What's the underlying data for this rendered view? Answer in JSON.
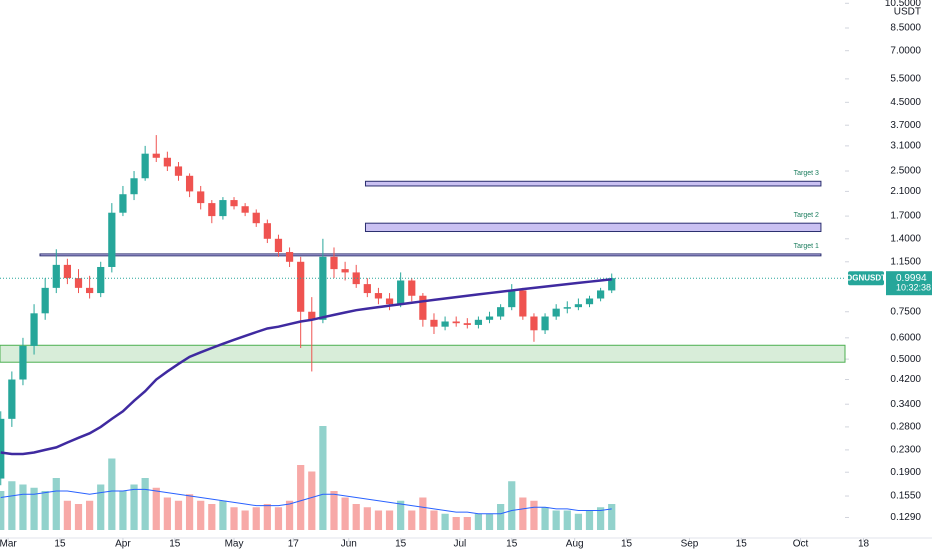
{
  "chart_data": {
    "type": "candlestick",
    "symbol": "OGNUSDT",
    "currency": "USDT",
    "countdown": "10:32:38",
    "log_scale": true,
    "up_color": "#26a69a",
    "down_color": "#ef5350",
    "ma_color": "#3f2aa0",
    "volume_ma_color": "#2962ff",
    "xlim": [
      -2.2,
      226
    ],
    "ylim": [
      0.112,
      10.8
    ],
    "volume_ylim": [
      0,
      40
    ],
    "xticks": [
      {
        "value": 0,
        "label": "Mar"
      },
      {
        "value": 14,
        "label": "15"
      },
      {
        "value": 31,
        "label": "Apr"
      },
      {
        "value": 45,
        "label": "15"
      },
      {
        "value": 61,
        "label": "May"
      },
      {
        "value": 77,
        "label": "17"
      },
      {
        "value": 92,
        "label": "Jun"
      },
      {
        "value": 106,
        "label": "15"
      },
      {
        "value": 122,
        "label": "Jul"
      },
      {
        "value": 136,
        "label": "15"
      },
      {
        "value": 153,
        "label": "Aug"
      },
      {
        "value": 167,
        "label": "15"
      },
      {
        "value": 184,
        "label": "Sep"
      },
      {
        "value": 198,
        "label": "15"
      },
      {
        "value": 214,
        "label": "Oct"
      },
      {
        "value": 231,
        "label": "18"
      }
    ],
    "yticks": [
      {
        "value": 10.5,
        "label": "10.5000"
      },
      {
        "value": 8.5,
        "label": "8.5000"
      },
      {
        "value": 7,
        "label": "7.0000"
      },
      {
        "value": 5.5,
        "label": "5.5000"
      },
      {
        "value": 4.5,
        "label": "4.5000"
      },
      {
        "value": 3.7,
        "label": "3.7000"
      },
      {
        "value": 3.1,
        "label": "3.1000"
      },
      {
        "value": 2.5,
        "label": "2.5000"
      },
      {
        "value": 2.1,
        "label": "2.1000"
      },
      {
        "value": 1.7,
        "label": "1.7000"
      },
      {
        "value": 1.4,
        "label": "1.4000"
      },
      {
        "value": 1.15,
        "label": "1.1500"
      },
      {
        "value": 0.75,
        "label": "0.7500"
      },
      {
        "value": 0.6,
        "label": "0.6000"
      },
      {
        "value": 0.5,
        "label": "0.5000"
      },
      {
        "value": 0.42,
        "label": "0.4200"
      },
      {
        "value": 0.34,
        "label": "0.3400"
      },
      {
        "value": 0.28,
        "label": "0.2800"
      },
      {
        "value": 0.23,
        "label": "0.2300"
      },
      {
        "value": 0.19,
        "label": "0.1900"
      },
      {
        "value": 0.155,
        "label": "0.1550"
      },
      {
        "value": 0.129,
        "label": "0.1290"
      }
    ],
    "last_price": 0.9994,
    "zones": [
      {
        "label": "Target 3",
        "low": 2.2,
        "high": 2.29,
        "start": 96.5,
        "end": 219.5,
        "color": "#b3a6ec"
      },
      {
        "label": "Target 2",
        "low": 1.49,
        "high": 1.6,
        "start": 96.5,
        "end": 219.5,
        "color": "#b3a6ec"
      },
      {
        "label": "Target 1",
        "low": 1.21,
        "high": 1.23,
        "start": 8.6,
        "end": 219.5,
        "color": "#b3a6ec"
      },
      {
        "low": 0.487,
        "high": 0.563,
        "start": -2.2,
        "end": 226,
        "color": "#c8e6c9"
      }
    ],
    "candles": {
      "x": [
        -2,
        1,
        4,
        7,
        10,
        13,
        16,
        19,
        22,
        25,
        28,
        31,
        34,
        37,
        40,
        43,
        46,
        49,
        52,
        55,
        58,
        61,
        64,
        67,
        70,
        73,
        76,
        79,
        82,
        85,
        88,
        91,
        94,
        97,
        100,
        103,
        106,
        109,
        112,
        115,
        118,
        121,
        124,
        127,
        130,
        133,
        136,
        139,
        142,
        145,
        148,
        151,
        154,
        157,
        160,
        163
      ],
      "open": [
        0.18,
        0.3,
        0.42,
        0.56,
        0.74,
        0.92,
        1.12,
        1.0,
        0.92,
        0.88,
        1.1,
        1.75,
        2.05,
        2.35,
        2.9,
        2.8,
        2.6,
        2.4,
        2.1,
        1.9,
        1.7,
        1.95,
        1.85,
        1.75,
        1.6,
        1.4,
        1.25,
        1.15,
        0.75,
        0.7,
        1.2,
        1.08,
        1.05,
        0.95,
        0.88,
        0.84,
        0.8,
        0.98,
        0.86,
        0.7,
        0.66,
        0.69,
        0.68,
        0.67,
        0.7,
        0.72,
        0.78,
        0.9,
        0.72,
        0.64,
        0.72,
        0.77,
        0.78,
        0.8,
        0.84,
        0.9
      ],
      "high": [
        0.32,
        0.45,
        0.6,
        0.8,
        1.0,
        1.28,
        1.18,
        1.08,
        1.02,
        1.15,
        1.9,
        2.2,
        2.5,
        3.1,
        3.4,
        2.95,
        2.7,
        2.45,
        2.2,
        1.95,
        2.0,
        2.0,
        1.9,
        1.8,
        1.65,
        1.45,
        1.3,
        1.2,
        0.85,
        1.4,
        1.3,
        1.15,
        1.12,
        1.0,
        0.92,
        0.88,
        1.05,
        1.0,
        0.88,
        0.74,
        0.72,
        0.72,
        0.71,
        0.72,
        0.75,
        0.8,
        0.95,
        0.92,
        0.74,
        0.74,
        0.8,
        0.82,
        0.84,
        0.86,
        0.92,
        1.04
      ],
      "low": [
        0.17,
        0.28,
        0.4,
        0.52,
        0.7,
        0.88,
        0.95,
        0.88,
        0.84,
        0.85,
        1.05,
        1.7,
        1.95,
        2.3,
        2.7,
        2.5,
        2.3,
        2.0,
        1.8,
        1.6,
        1.65,
        1.8,
        1.7,
        1.55,
        1.35,
        1.2,
        1.1,
        0.55,
        0.45,
        0.68,
        1.0,
        0.98,
        0.92,
        0.85,
        0.8,
        0.76,
        0.78,
        0.82,
        0.66,
        0.62,
        0.64,
        0.66,
        0.65,
        0.65,
        0.68,
        0.7,
        0.76,
        0.7,
        0.58,
        0.62,
        0.7,
        0.74,
        0.76,
        0.78,
        0.82,
        0.88
      ],
      "close": [
        0.3,
        0.42,
        0.56,
        0.74,
        0.92,
        1.12,
        1.0,
        0.92,
        0.88,
        1.1,
        1.75,
        2.05,
        2.35,
        2.9,
        2.8,
        2.6,
        2.4,
        2.1,
        1.9,
        1.7,
        1.95,
        1.85,
        1.75,
        1.6,
        1.4,
        1.25,
        1.15,
        0.75,
        0.7,
        1.2,
        1.08,
        1.05,
        0.95,
        0.88,
        0.84,
        0.8,
        0.98,
        0.86,
        0.7,
        0.66,
        0.69,
        0.68,
        0.67,
        0.7,
        0.72,
        0.78,
        0.9,
        0.72,
        0.64,
        0.72,
        0.77,
        0.78,
        0.8,
        0.84,
        0.9,
        0.9994
      ],
      "volume": [
        12,
        15,
        14,
        13,
        12,
        16,
        9,
        8,
        9,
        14,
        22,
        12,
        14,
        16,
        13,
        10,
        9,
        11,
        9,
        8,
        9,
        7,
        6,
        7,
        8,
        7,
        9,
        20,
        18,
        32,
        12,
        10,
        8,
        7,
        6,
        6,
        9,
        6,
        10,
        6,
        5,
        4,
        4,
        5,
        5,
        8,
        15,
        10,
        9,
        7,
        6,
        6,
        5,
        6,
        7,
        8
      ],
      "ma": [
        0.225,
        0.222,
        0.222,
        0.225,
        0.23,
        0.235,
        0.245,
        0.255,
        0.265,
        0.28,
        0.3,
        0.32,
        0.35,
        0.38,
        0.42,
        0.45,
        0.48,
        0.51,
        0.53,
        0.55,
        0.57,
        0.59,
        0.61,
        0.63,
        0.65,
        0.66,
        0.675,
        0.69,
        0.7,
        0.715,
        0.73,
        0.745,
        0.76,
        0.77,
        0.78,
        0.79,
        0.8,
        0.81,
        0.82,
        0.83,
        0.84,
        0.85,
        0.86,
        0.87,
        0.88,
        0.89,
        0.9,
        0.91,
        0.92,
        0.93,
        0.94,
        0.95,
        0.96,
        0.97,
        0.98,
        0.99
      ],
      "volume_ma": [
        10,
        10.5,
        11,
        11,
        11.5,
        12,
        12,
        11.5,
        11,
        11.5,
        12,
        12,
        12.5,
        12.5,
        12,
        11.5,
        11,
        10.5,
        10,
        9.5,
        9,
        8.5,
        8,
        7.5,
        7.5,
        7.5,
        8,
        9,
        10,
        11,
        11,
        10.5,
        10,
        9.5,
        9,
        8.5,
        8,
        7.5,
        7,
        6.5,
        6,
        5.5,
        5.5,
        5,
        5,
        5,
        6,
        6.5,
        7,
        7,
        6.5,
        6.5,
        6,
        6,
        6,
        6.5
      ]
    }
  }
}
